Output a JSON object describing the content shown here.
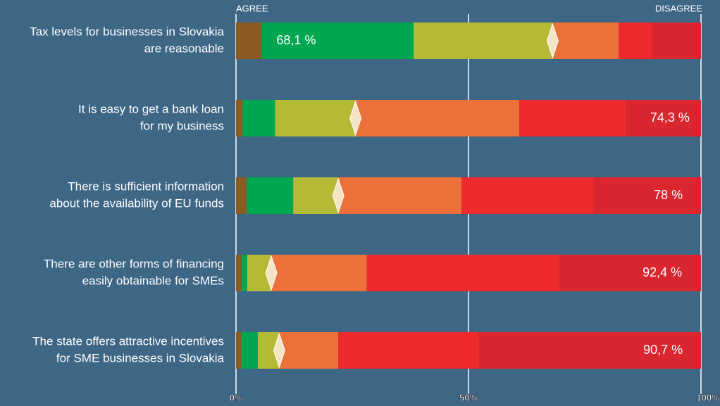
{
  "chart_data": {
    "type": "stacked-bar-horizontal",
    "axis_left_label": "AGREE",
    "axis_right_label": "DISAGREE",
    "categories": [
      [
        "Tax levels for businesses in Slovakia",
        "are reasonable"
      ],
      [
        "It is easy to get a bank loan",
        "for my business"
      ],
      [
        "There is sufficient information",
        "about the availability of EU funds"
      ],
      [
        "There are other forms of financing",
        "easily obtainable for SMEs"
      ],
      [
        "The state offers attractive incentives",
        "for SME businesses in Slovakia"
      ]
    ],
    "series": [
      {
        "color": "#8b5a22",
        "values": [
          5.5,
          1.4,
          2.3,
          1.2,
          1.1
        ]
      },
      {
        "color": "#00a650",
        "values": [
          32.7,
          7.0,
          10.0,
          1.2,
          3.6
        ]
      },
      {
        "color": "#b4b936",
        "values": [
          29.9,
          17.3,
          9.7,
          5.2,
          4.6
        ]
      },
      {
        "color": "#ec7039",
        "values": [
          14.2,
          35.2,
          26.5,
          20.5,
          12.7
        ]
      },
      {
        "color": "#ee2a2d",
        "values": [
          7.1,
          22.9,
          28.5,
          41.5,
          30.2
        ]
      },
      {
        "color": "#d9262f",
        "values": [
          10.6,
          16.2,
          23.0,
          30.4,
          47.8
        ]
      }
    ],
    "totals": [
      {
        "value": 68.1,
        "label": "68,1 %",
        "side": "agree"
      },
      {
        "value": 74.3,
        "label": "74,3 %",
        "side": "disagree"
      },
      {
        "value": 78,
        "label": "78 %",
        "side": "disagree"
      },
      {
        "value": 92.4,
        "label": "92,4 %",
        "side": "disagree"
      },
      {
        "value": 90.7,
        "label": "90,7 %",
        "side": "disagree"
      }
    ],
    "xlim": [
      0,
      100
    ],
    "xticks": [
      {
        "value": 0,
        "label": "0%"
      },
      {
        "value": 50,
        "label": "50%"
      },
      {
        "value": 100,
        "label": "100%"
      }
    ]
  }
}
